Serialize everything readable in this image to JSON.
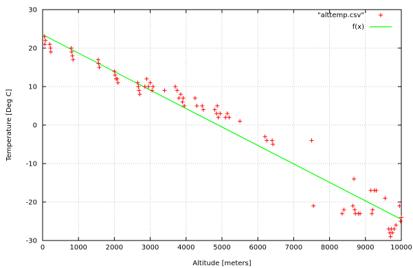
{
  "chart_data": {
    "type": "scatter",
    "title": "",
    "xlabel": "Altitude [meters]",
    "ylabel": "Temperature [Deg C]",
    "xlim": [
      0,
      10000
    ],
    "ylim": [
      -30,
      30
    ],
    "xticks": [
      0,
      1000,
      2000,
      3000,
      4000,
      5000,
      6000,
      7000,
      8000,
      9000,
      10000
    ],
    "yticks": [
      -30,
      -20,
      -10,
      0,
      10,
      20,
      30
    ],
    "grid": true,
    "legend_position": "top-right",
    "series": [
      {
        "name": "\"alttemp.csv\"",
        "kind": "points",
        "marker": "plus",
        "color": "#ff0000",
        "points": [
          [
            50,
            23
          ],
          [
            60,
            21
          ],
          [
            80,
            22
          ],
          [
            200,
            21
          ],
          [
            220,
            20
          ],
          [
            230,
            19
          ],
          [
            800,
            20
          ],
          [
            810,
            19
          ],
          [
            830,
            18
          ],
          [
            850,
            17
          ],
          [
            1550,
            17
          ],
          [
            1560,
            16
          ],
          [
            1580,
            15
          ],
          [
            2000,
            14
          ],
          [
            2020,
            13
          ],
          [
            2050,
            12
          ],
          [
            2080,
            12
          ],
          [
            2100,
            11
          ],
          [
            2650,
            11
          ],
          [
            2670,
            10
          ],
          [
            2690,
            9
          ],
          [
            2710,
            8
          ],
          [
            2850,
            10
          ],
          [
            2900,
            12
          ],
          [
            2950,
            10
          ],
          [
            3000,
            11
          ],
          [
            3050,
            9
          ],
          [
            3080,
            10
          ],
          [
            3400,
            9
          ],
          [
            3700,
            10
          ],
          [
            3750,
            9
          ],
          [
            3800,
            7
          ],
          [
            3850,
            8
          ],
          [
            3900,
            6
          ],
          [
            3920,
            7
          ],
          [
            3950,
            5
          ],
          [
            4250,
            7
          ],
          [
            4300,
            5
          ],
          [
            4450,
            5
          ],
          [
            4480,
            4
          ],
          [
            4800,
            4
          ],
          [
            4850,
            3
          ],
          [
            4870,
            5
          ],
          [
            4900,
            2
          ],
          [
            4950,
            3
          ],
          [
            5100,
            2
          ],
          [
            5150,
            3
          ],
          [
            5200,
            2
          ],
          [
            5500,
            1
          ],
          [
            6200,
            -3
          ],
          [
            6250,
            -4
          ],
          [
            6400,
            -4
          ],
          [
            6420,
            -5
          ],
          [
            7500,
            -4
          ],
          [
            7550,
            -21
          ],
          [
            8350,
            -23
          ],
          [
            8400,
            -22
          ],
          [
            8650,
            -21
          ],
          [
            8680,
            -14
          ],
          [
            8700,
            -22
          ],
          [
            8720,
            -23
          ],
          [
            8800,
            -23
          ],
          [
            8850,
            -23
          ],
          [
            9150,
            -17
          ],
          [
            9180,
            -23
          ],
          [
            9200,
            -22
          ],
          [
            9250,
            -17
          ],
          [
            9300,
            -17
          ],
          [
            9550,
            -19
          ],
          [
            9650,
            -27
          ],
          [
            9680,
            -28
          ],
          [
            9700,
            -29
          ],
          [
            9720,
            -27
          ],
          [
            9750,
            -28
          ],
          [
            9800,
            -27
          ],
          [
            9850,
            -26
          ],
          [
            9950,
            -21
          ],
          [
            9980,
            -25
          ],
          [
            10000,
            -24
          ]
        ]
      },
      {
        "name": "f(x)",
        "kind": "line",
        "color": "#00ff00",
        "points": [
          [
            0,
            23.5
          ],
          [
            10000,
            -24.5
          ]
        ]
      }
    ]
  }
}
